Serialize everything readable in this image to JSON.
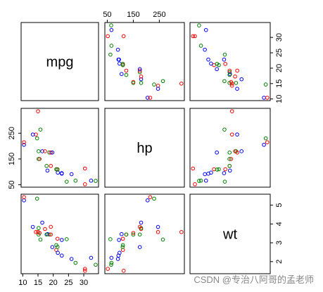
{
  "chart_data": {
    "type": "scatter_matrix",
    "colors": [
      "red",
      "green",
      "blue"
    ],
    "variables": [
      {
        "name": "mpg",
        "values": [
          21,
          21,
          22.8,
          21.4,
          18.7,
          18.1,
          14.3,
          24.4,
          22.8,
          19.2,
          17.8,
          16.4,
          17.3,
          15.2,
          10.4,
          10.4,
          14.7,
          32.4,
          30.4,
          33.9,
          21.5,
          15.5,
          15.2,
          13.3,
          19.2,
          27.3,
          26,
          30.4,
          15.8,
          19.7,
          15,
          21.4
        ],
        "lim": [
          9.46,
          34.84
        ],
        "ticks": [
          10,
          15,
          20,
          25,
          30
        ]
      },
      {
        "name": "hp",
        "values": [
          110,
          110,
          93,
          110,
          175,
          105,
          245,
          62,
          95,
          123,
          123,
          180,
          180,
          180,
          205,
          215,
          230,
          66,
          52,
          65,
          97,
          150,
          150,
          245,
          175,
          66,
          91,
          113,
          264,
          175,
          335,
          109
        ],
        "lim": [
          40.68,
          346.32
        ],
        "ticks": [
          50,
          150,
          250
        ]
      },
      {
        "name": "wt",
        "values": [
          2.62,
          2.875,
          2.32,
          3.215,
          3.44,
          3.46,
          3.57,
          3.19,
          3.15,
          3.44,
          3.44,
          4.07,
          3.73,
          3.78,
          5.25,
          5.424,
          5.345,
          2.2,
          1.615,
          1.835,
          2.465,
          3.52,
          3.435,
          3.84,
          3.845,
          1.935,
          2.14,
          1.513,
          3.17,
          2.77,
          3.57,
          2.78
        ],
        "lim": [
          1.357,
          5.58
        ],
        "ticks": [
          2,
          3,
          4,
          5
        ]
      }
    ]
  },
  "watermark": "CSDN @专治八阿哥的孟老师"
}
